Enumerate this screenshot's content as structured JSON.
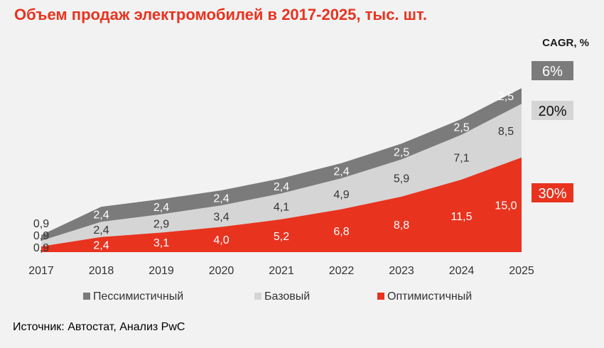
{
  "title": "Объем продаж электромобилей в 2017-2025,  тыс. шт.",
  "source": "Источник: Автостат, Анализ PwC",
  "cagr_title": "CAGR, %",
  "colors": {
    "pessimistic": "#7b7b7b",
    "base": "#d5d5d5",
    "optimistic": "#e8331f",
    "title": "#e8331f"
  },
  "chart_data": {
    "type": "area",
    "stacked": true,
    "title": "Объем продаж электромобилей в 2017-2025,  тыс. шт.",
    "xlabel": "",
    "ylabel": "",
    "grid": false,
    "legend_position": "bottom",
    "x": [
      "2017",
      "2018",
      "2019",
      "2020",
      "2021",
      "2022",
      "2023",
      "2024",
      "2025"
    ],
    "series": [
      {
        "name": "Оптимистичный",
        "values": [
          0.9,
          2.4,
          3.1,
          4.0,
          5.2,
          6.8,
          8.8,
          11.5,
          15.0
        ],
        "labels": [
          "0,9",
          "2,4",
          "3,1",
          "4,0",
          "5,2",
          "6,8",
          "8,8",
          "11,5",
          "15,0"
        ],
        "cagr": "30%"
      },
      {
        "name": "Базовый",
        "values": [
          0.9,
          2.4,
          2.9,
          3.4,
          4.1,
          4.9,
          5.9,
          7.1,
          8.5
        ],
        "labels": [
          "0,9",
          "2,4",
          "2,9",
          "3,4",
          "4,1",
          "4,9",
          "5,9",
          "7,1",
          "8,5"
        ],
        "cagr": "20%"
      },
      {
        "name": "Пессимистичный",
        "values": [
          0.9,
          2.4,
          2.4,
          2.4,
          2.4,
          2.4,
          2.5,
          2.5,
          2.5
        ],
        "labels": [
          "0,9",
          "2,4",
          "2,4",
          "2,4",
          "2,4",
          "2,4",
          "2,5",
          "2,5",
          "2,5"
        ],
        "cagr": "6%"
      }
    ],
    "legend_order": [
      "Пессимистичный",
      "Базовый",
      "Оптимистичный"
    ]
  }
}
